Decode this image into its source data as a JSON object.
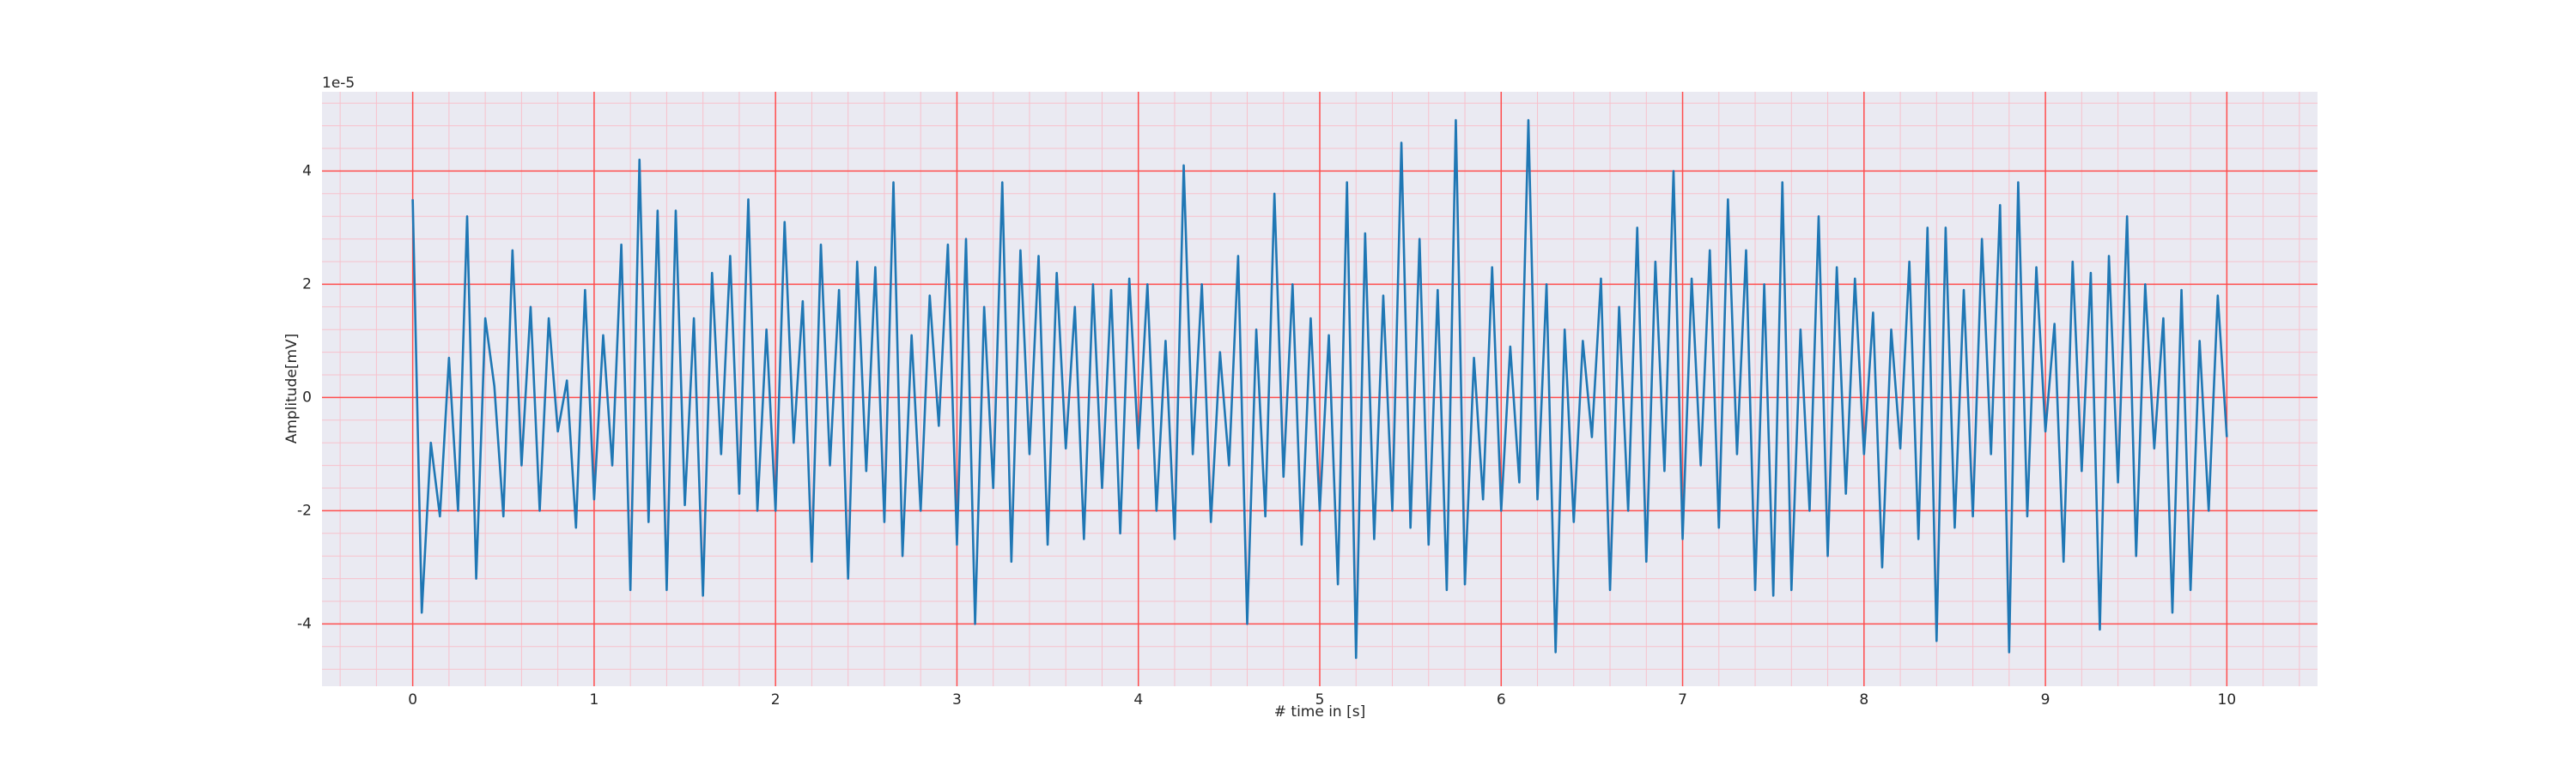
{
  "chart_data": {
    "type": "line",
    "xlabel": "# time in [s]",
    "ylabel": "Amplitude[mV]",
    "y_offset_label": "1e-5",
    "x": [
      0,
      0.05,
      0.1,
      0.15,
      0.2,
      0.25,
      0.3,
      0.35,
      0.4,
      0.45,
      0.5,
      0.55,
      0.6,
      0.65,
      0.7,
      0.75,
      0.8,
      0.85,
      0.9,
      0.95,
      1,
      1.05,
      1.1,
      1.15,
      1.2,
      1.25,
      1.3,
      1.35,
      1.4,
      1.45,
      1.5,
      1.55,
      1.6,
      1.65,
      1.7,
      1.75,
      1.8,
      1.85,
      1.9,
      1.95,
      2,
      2.05,
      2.1,
      2.15,
      2.2,
      2.25,
      2.3,
      2.35,
      2.4,
      2.45,
      2.5,
      2.55,
      2.6,
      2.65,
      2.7,
      2.75,
      2.8,
      2.85,
      2.9,
      2.95,
      3,
      3.05,
      3.1,
      3.15,
      3.2,
      3.25,
      3.3,
      3.35,
      3.4,
      3.45,
      3.5,
      3.55,
      3.6,
      3.65,
      3.7,
      3.75,
      3.8,
      3.85,
      3.9,
      3.95,
      4,
      4.05,
      4.1,
      4.15,
      4.2,
      4.25,
      4.3,
      4.35,
      4.4,
      4.45,
      4.5,
      4.55,
      4.6,
      4.65,
      4.7,
      4.75,
      4.8,
      4.85,
      4.9,
      4.95,
      5,
      5.05,
      5.1,
      5.15,
      5.2,
      5.25,
      5.3,
      5.35,
      5.4,
      5.45,
      5.5,
      5.55,
      5.6,
      5.65,
      5.7,
      5.75,
      5.8,
      5.85,
      5.9,
      5.95,
      6,
      6.05,
      6.1,
      6.15,
      6.2,
      6.25,
      6.3,
      6.35,
      6.4,
      6.45,
      6.5,
      6.55,
      6.6,
      6.65,
      6.7,
      6.75,
      6.8,
      6.85,
      6.9,
      6.95,
      7,
      7.05,
      7.1,
      7.15,
      7.2,
      7.25,
      7.3,
      7.35,
      7.4,
      7.45,
      7.5,
      7.55,
      7.6,
      7.65,
      7.7,
      7.75,
      7.8,
      7.85,
      7.9,
      7.95,
      8,
      8.05,
      8.1,
      8.15,
      8.2,
      8.25,
      8.3,
      8.35,
      8.4,
      8.45,
      8.5,
      8.55,
      8.6,
      8.65,
      8.7,
      8.75,
      8.8,
      8.85,
      8.9,
      8.95,
      9,
      9.05,
      9.1,
      9.15,
      9.2,
      9.25,
      9.3,
      9.35,
      9.4,
      9.45,
      9.5,
      9.55,
      9.6,
      9.65,
      9.7,
      9.75,
      9.8,
      9.85,
      9.9,
      9.95,
      10
    ],
    "values": [
      3.5,
      -3.8,
      -0.8,
      -2.1,
      0.7,
      -2.0,
      3.2,
      -3.2,
      1.4,
      0.2,
      -2.1,
      2.6,
      -1.2,
      1.6,
      -2.0,
      1.4,
      -0.6,
      0.3,
      -2.3,
      1.9,
      -1.8,
      1.1,
      -1.2,
      2.7,
      -3.4,
      4.2,
      -2.2,
      3.3,
      -3.4,
      3.3,
      -1.9,
      1.4,
      -3.5,
      2.2,
      -1.0,
      2.5,
      -1.7,
      3.5,
      -2.0,
      1.2,
      -2.0,
      3.1,
      -0.8,
      1.7,
      -2.9,
      2.7,
      -1.2,
      1.9,
      -3.2,
      2.4,
      -1.3,
      2.3,
      -2.2,
      3.8,
      -2.8,
      1.1,
      -2.0,
      1.8,
      -0.5,
      2.7,
      -2.6,
      2.8,
      -4.0,
      1.6,
      -1.6,
      3.8,
      -2.9,
      2.6,
      -1.0,
      2.5,
      -2.6,
      2.2,
      -0.9,
      1.6,
      -2.5,
      2.0,
      -1.6,
      1.9,
      -2.4,
      2.1,
      -0.9,
      2.0,
      -2.0,
      1.0,
      -2.5,
      4.1,
      -1.0,
      2.0,
      -2.2,
      0.8,
      -1.2,
      2.5,
      -4.0,
      1.2,
      -2.1,
      3.6,
      -1.4,
      2.0,
      -2.6,
      1.4,
      -2.0,
      1.1,
      -3.3,
      3.8,
      -4.6,
      2.9,
      -2.5,
      1.8,
      -2.0,
      4.5,
      -2.3,
      2.8,
      -2.6,
      1.9,
      -3.4,
      4.9,
      -3.3,
      0.7,
      -1.8,
      2.3,
      -2.0,
      0.9,
      -1.5,
      4.9,
      -1.8,
      2.0,
      -4.5,
      1.2,
      -2.2,
      1.0,
      -0.7,
      2.1,
      -3.4,
      1.6,
      -2.0,
      3.0,
      -2.9,
      2.4,
      -1.3,
      4.0,
      -2.5,
      2.1,
      -1.2,
      2.6,
      -2.3,
      3.5,
      -1.0,
      2.6,
      -3.4,
      2.0,
      -3.5,
      3.8,
      -3.4,
      1.2,
      -2.0,
      3.2,
      -2.8,
      2.3,
      -1.7,
      2.1,
      -1.0,
      1.5,
      -3.0,
      1.2,
      -0.9,
      2.4,
      -2.5,
      3.0,
      -4.3,
      3.0,
      -2.3,
      1.9,
      -2.1,
      2.8,
      -1.0,
      3.4,
      -4.5,
      3.8,
      -2.1,
      2.3,
      -0.6,
      1.3,
      -2.9,
      2.4,
      -1.3,
      2.2,
      -4.1,
      2.5,
      -1.5,
      3.2,
      -2.8,
      2.0,
      -0.9,
      1.4,
      -3.8,
      1.9,
      -3.4,
      1.0,
      -2.0,
      1.8,
      -0.7
    ],
    "color": "#1f77b4",
    "xlim": [
      -0.5,
      10.5
    ],
    "ylim": [
      -5.1,
      5.4
    ],
    "xticks": [
      0,
      1,
      2,
      3,
      4,
      5,
      6,
      7,
      8,
      9,
      10
    ],
    "yticks": [
      -4,
      -2,
      0,
      2,
      4
    ],
    "grid": true,
    "grid_color": "#ff4d4d",
    "minor_grid": true,
    "minor_grid_color": "#f7c1cc",
    "minor_divisions": 5,
    "background": "#eaeaf2"
  }
}
